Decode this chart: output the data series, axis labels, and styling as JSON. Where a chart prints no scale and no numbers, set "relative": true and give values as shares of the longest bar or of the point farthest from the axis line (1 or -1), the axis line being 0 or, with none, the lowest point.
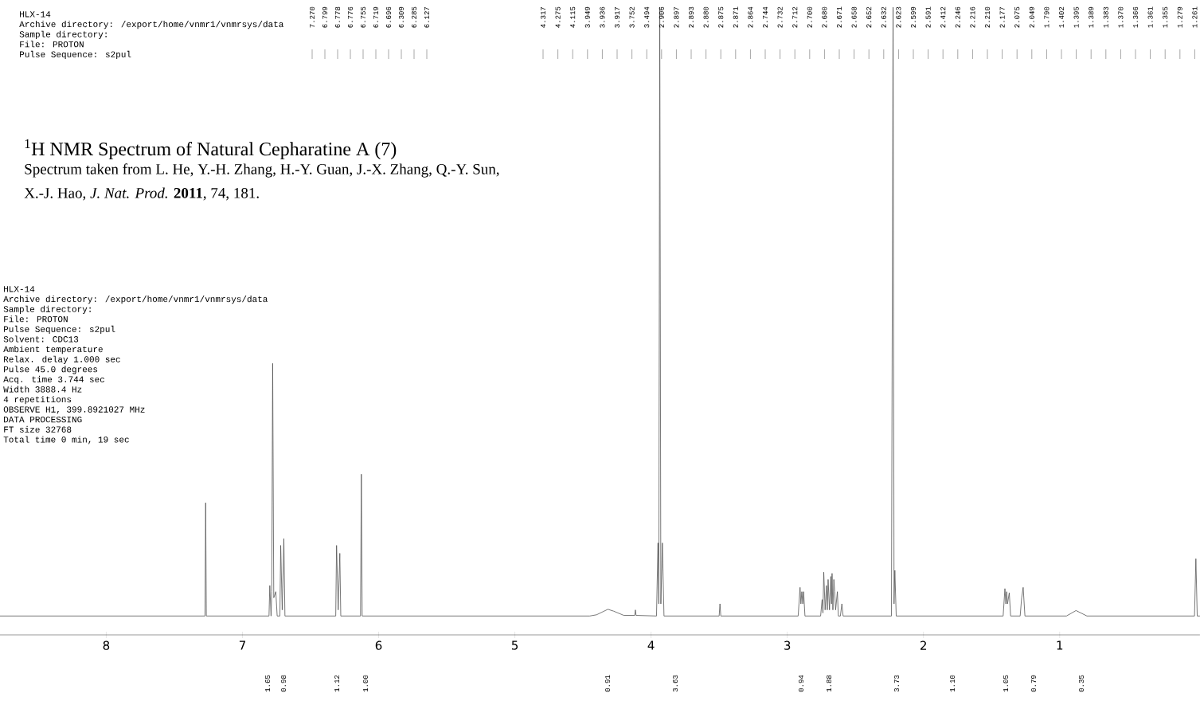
{
  "chart_data": {
    "type": "line",
    "relative": true,
    "title": "$^{1}$H NMR Spectrum of Natural Cepharatine A (7)",
    "subtitle": "Spectrum taken from L. He, Y.-H. Zhang, H.-Y. Guan, J.-X. Zhang, Q.-Y. Sun, X.-J. Hao, *J. Nat. Prod.* **2011**, 74, 181.",
    "xlim": [
      8.78,
      -0.03
    ],
    "xticks": [
      8,
      7,
      6,
      5,
      4,
      3,
      2,
      1
    ],
    "grid": false,
    "marker": "none",
    "line_style": "solid",
    "series": [
      {
        "color": "#555555",
        "x": [
          8.78,
          7.275,
          7.27,
          7.265,
          6.805,
          6.799,
          6.79,
          6.785,
          6.778,
          6.77,
          6.755,
          6.745,
          6.725,
          6.719,
          6.708,
          6.696,
          6.688,
          6.315,
          6.309,
          6.297,
          6.285,
          6.278,
          6.133,
          6.127,
          6.121,
          4.45,
          4.4,
          4.317,
          4.275,
          4.2,
          4.12,
          4.115,
          4.11,
          3.96,
          3.949,
          3.943,
          3.936,
          3.928,
          3.917,
          3.905,
          3.5,
          3.494,
          3.488,
          2.92,
          2.906,
          2.9,
          2.893,
          2.886,
          2.88,
          2.87,
          2.755,
          2.744,
          2.738,
          2.732,
          2.722,
          2.712,
          2.706,
          2.7,
          2.69,
          2.68,
          2.675,
          2.671,
          2.665,
          2.658,
          2.652,
          2.645,
          2.632,
          2.625,
          2.61,
          2.599,
          2.59,
          2.235,
          2.223,
          2.216,
          2.21,
          2.2,
          1.415,
          1.402,
          1.395,
          1.389,
          1.383,
          1.37,
          1.36,
          1.29,
          1.279,
          1.268,
          1.255,
          0.95,
          0.88,
          0.8,
          0.01,
          0.0,
          -0.01,
          -0.03
        ],
        "values": [
          0,
          0,
          0.186,
          0,
          0,
          0.05,
          0,
          0.04,
          0.415,
          0.03,
          0.04,
          0,
          0,
          0.116,
          0.01,
          0.127,
          0,
          0,
          0.116,
          0.01,
          0.103,
          0,
          0,
          0.233,
          0,
          0,
          0.002,
          0.011,
          0.008,
          0.001,
          0.001,
          0.01,
          0.001,
          0,
          0.12,
          0.02,
          1,
          0.02,
          0.12,
          0,
          0,
          0.02,
          0,
          0,
          0.047,
          0.02,
          0.04,
          0.02,
          0.04,
          0,
          0,
          0.027,
          0.005,
          0.072,
          0.01,
          0.05,
          0.01,
          0.06,
          0.01,
          0.065,
          0.02,
          0.07,
          0.01,
          0.06,
          0.04,
          0.01,
          0.04,
          0,
          0,
          0.02,
          0,
          0,
          1,
          0.02,
          0.075,
          0,
          0,
          0.045,
          0.02,
          0.04,
          0.02,
          0.038,
          0,
          0,
          0.03,
          0.047,
          0,
          0,
          0.009,
          0,
          0,
          0.094,
          0,
          0
        ]
      }
    ],
    "annotations": [
      "HLX-14",
      "Archive directory: /export/home/vnmr1/vnmrsys/data",
      "Sample directory:",
      "File: PROTON",
      "Pulse Sequence: s2pul",
      "HLX-14",
      "Archive directory: /export/home/vnmr1/vnmrsys/data",
      "Sample directory:",
      "File: PROTON",
      "Pulse Sequence: s2pul",
      "Solvent: CDC13",
      "Ambient temperature",
      "Relax. delay 1.000 sec",
      "Pulse 45.0 degrees",
      "Acq. time 3.744 sec",
      "Width 3888.4 Hz",
      "4 repetitions",
      "OBSERVE H1, 399.8921027 MHz",
      "DATA PROCESSING",
      "FT size 32768",
      "Total time 0 min, 19 sec",
      "7.270",
      "6.799",
      "6.778",
      "6.776",
      "6.755",
      "6.719",
      "6.696",
      "6.309",
      "6.285",
      "6.127",
      "4.317",
      "4.275",
      "4.115",
      "3.949",
      "3.936",
      "3.917",
      "3.752",
      "3.494",
      "2.906",
      "2.897",
      "2.893",
      "2.880",
      "2.875",
      "2.871",
      "2.864",
      "2.744",
      "2.732",
      "2.712",
      "2.700",
      "2.680",
      "2.671",
      "2.658",
      "2.652",
      "2.632",
      "2.623",
      "2.599",
      "2.591",
      "2.412",
      "2.246",
      "2.216",
      "2.210",
      "2.177",
      "2.075",
      "2.049",
      "1.790",
      "1.402",
      "1.395",
      "1.389",
      "1.383",
      "1.370",
      "1.366",
      "1.361",
      "1.355",
      "1.279",
      "1.261",
      "1.65",
      "0.98",
      "1.12",
      "1.00",
      "0.91",
      "3.63",
      "0.94",
      "1.88",
      "3.73",
      "1.10",
      "1.05",
      "0.79",
      "0.35"
    ]
  }
}
